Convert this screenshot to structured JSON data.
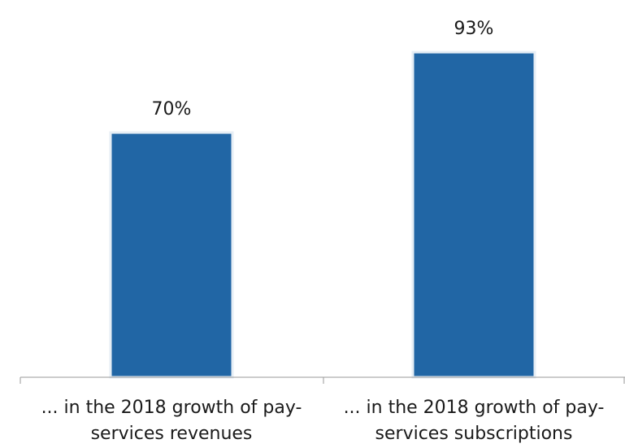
{
  "chart_data": {
    "type": "bar",
    "categories": [
      "... in the 2018 growth of pay-services revenues",
      "... in the 2018 growth of pay-services subscriptions"
    ],
    "category_lines": [
      [
        "... in the 2018 growth of pay-",
        "services revenues"
      ],
      [
        "... in the 2018 growth of pay-",
        "services subscriptions"
      ]
    ],
    "values": [
      70,
      93
    ],
    "data_labels": [
      "70%",
      "93%"
    ],
    "unit": "%",
    "ylim": [
      0,
      100
    ],
    "grid": false,
    "legend": "none",
    "colors": {
      "bar": "#2166a5",
      "bar_edge": "#e6eef5",
      "axis": "#9a9a9a",
      "text": "#1a1a1a"
    }
  }
}
